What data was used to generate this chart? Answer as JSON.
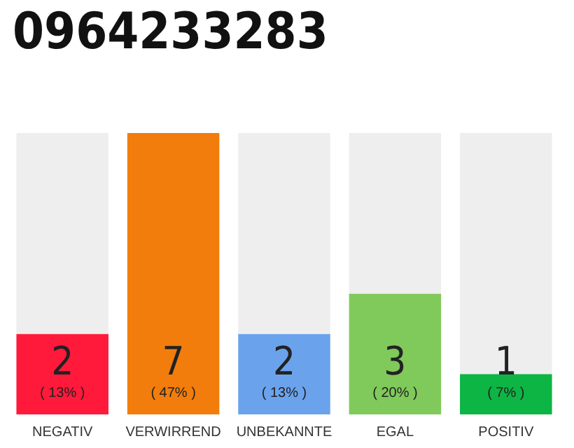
{
  "chart_data": {
    "type": "bar",
    "title": "0964233283",
    "categories": [
      "NEGATIV",
      "VERWIRREND",
      "UNBEKANNTE",
      "EGAL",
      "POSITIV"
    ],
    "values": [
      2,
      7,
      2,
      3,
      1
    ],
    "colors": [
      "#ff1a3c",
      "#f27d0c",
      "#6aa3ec",
      "#80c95b",
      "#0db544"
    ],
    "value_labels": [
      "2\n( 13% )",
      "7\n( 47% )",
      "2\n( 13% )",
      "3\n( 20% )",
      "1\n( 7% )"
    ],
    "ylim": [
      0,
      7
    ],
    "tick_labels": "x"
  }
}
